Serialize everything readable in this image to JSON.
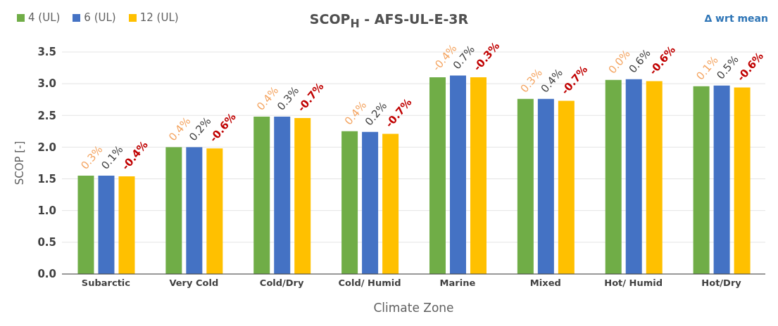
{
  "chart_data": {
    "type": "bar",
    "title": "SCOP$_{H}$ - AFS-UL-E-3R",
    "xlabel": "Climate Zone",
    "ylabel": "SCOP [-]",
    "annotations": [
      "Δ wrt mean",
      {
        "text": "0.3%",
        "x": "Subarctic",
        "y": 1.55
      },
      {
        "text": "0.1%",
        "x": "Subarctic",
        "y": 1.55
      },
      {
        "text": "-0.4%",
        "x": "Subarctic",
        "y": 1.54
      },
      {
        "text": "0.4%",
        "x": "Very Cold",
        "y": 2.0
      },
      {
        "text": "0.2%",
        "x": "Very Cold",
        "y": 2.0
      },
      {
        "text": "-0.6%",
        "x": "Very Cold",
        "y": 1.98
      },
      {
        "text": "0.4%",
        "x": "Cold/Dry",
        "y": 2.48
      },
      {
        "text": "0.3%",
        "x": "Cold/Dry",
        "y": 2.48
      },
      {
        "text": "-0.7%",
        "x": "Cold/Dry",
        "y": 2.46
      },
      {
        "text": "0.4%",
        "x": "Cold/ Humid",
        "y": 2.25
      },
      {
        "text": "0.2%",
        "x": "Cold/ Humid",
        "y": 2.24
      },
      {
        "text": "-0.7%",
        "x": "Cold/ Humid",
        "y": 2.21
      },
      {
        "text": "-0.4%",
        "x": "Marine",
        "y": 3.1
      },
      {
        "text": "0.7%",
        "x": "Marine",
        "y": 3.13
      },
      {
        "text": "-0.3%",
        "x": "Marine",
        "y": 3.1
      },
      {
        "text": "0.3%",
        "x": "Mixed",
        "y": 2.76
      },
      {
        "text": "0.4%",
        "x": "Mixed",
        "y": 2.76
      },
      {
        "text": "-0.7%",
        "x": "Mixed",
        "y": 2.73
      },
      {
        "text": "0.0%",
        "x": "Hot/ Humid",
        "y": 3.06
      },
      {
        "text": "0.6%",
        "x": "Hot/ Humid",
        "y": 3.07
      },
      {
        "text": "-0.6%",
        "x": "Hot/ Humid",
        "y": 3.04
      },
      {
        "text": "0.1%",
        "x": "Hot/Dry",
        "y": 2.96
      },
      {
        "text": "0.5%",
        "x": "Hot/Dry",
        "y": 2.97
      },
      {
        "text": "-0.6%",
        "x": "Hot/Dry",
        "y": 2.94
      }
    ],
    "categories": [
      "Subarctic",
      "Very Cold",
      "Cold/Dry",
      "Cold/ Humid",
      "Marine",
      "Mixed",
      "Hot/ Humid",
      "Hot/Dry"
    ],
    "series": [
      {
        "name": "4 (UL)",
        "color": "#70ad47",
        "values": [
          1.55,
          2.0,
          2.48,
          2.25,
          3.1,
          2.76,
          3.06,
          2.96
        ]
      },
      {
        "name": "6 (UL)",
        "color": "#4472c4",
        "values": [
          1.55,
          2.0,
          2.48,
          2.24,
          3.13,
          2.76,
          3.07,
          2.97
        ]
      },
      {
        "name": "12 (UL)",
        "color": "#ffc000",
        "values": [
          1.54,
          1.98,
          2.46,
          2.21,
          3.1,
          2.73,
          3.04,
          2.94
        ]
      }
    ],
    "ylim": [
      0,
      3.5
    ],
    "yticks": [
      {
        "value": 0,
        "label": "0.0"
      },
      {
        "value": 0.5,
        "label": "0.5"
      },
      {
        "value": 1,
        "label": "1.0"
      },
      {
        "value": 1.5,
        "label": "1.5"
      },
      {
        "value": 2,
        "label": "2.0"
      },
      {
        "value": 2.5,
        "label": "2.5"
      },
      {
        "value": 3,
        "label": "3.0"
      },
      {
        "value": 3.5,
        "label": "3.5"
      }
    ],
    "grid": "y",
    "legend": "top left"
  }
}
